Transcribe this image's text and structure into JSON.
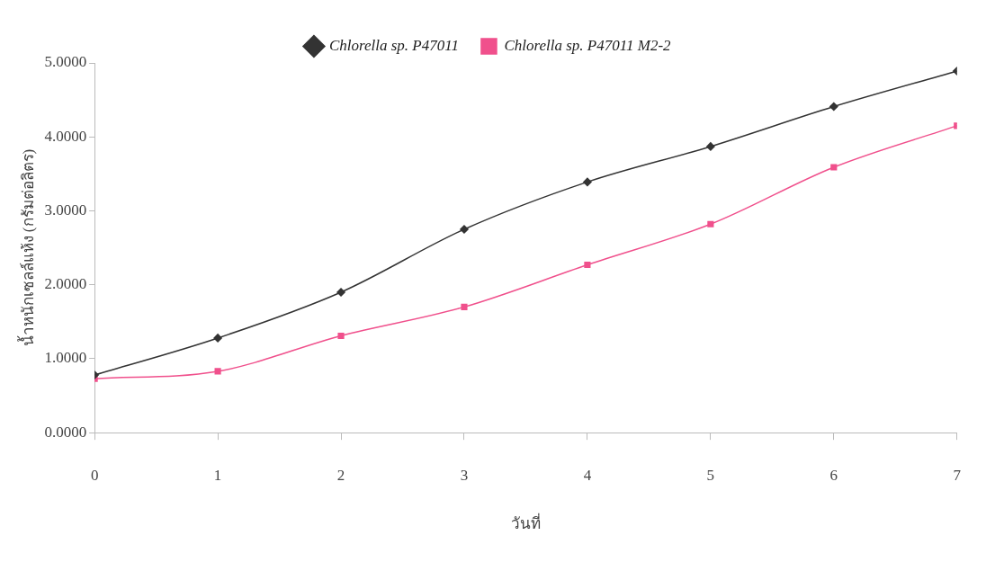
{
  "chart_data": {
    "type": "line",
    "xlabel": "วันที่",
    "ylabel": "น้ำหนักเซลล์แห้ง (กรัมต่อลิตร)",
    "x": [
      0,
      1,
      2,
      3,
      4,
      5,
      6,
      7
    ],
    "xlim": [
      0,
      7
    ],
    "xticks": [
      0,
      1,
      2,
      3,
      4,
      5,
      6,
      7
    ],
    "ylim": [
      0,
      5
    ],
    "yticks": [
      {
        "value": 0,
        "label": "0.0000"
      },
      {
        "value": 1,
        "label": "1.0000"
      },
      {
        "value": 2,
        "label": "2.0000"
      },
      {
        "value": 3,
        "label": "3.0000"
      },
      {
        "value": 4,
        "label": "4.0000"
      },
      {
        "value": 5,
        "label": "5.0000"
      }
    ],
    "grid": false,
    "legend": "top",
    "series": [
      {
        "name": "Chlorella sp. P47011",
        "color": "#333333",
        "marker": "diamond",
        "values": [
          0.78,
          1.28,
          1.9,
          2.75,
          3.39,
          3.87,
          4.41,
          4.89
        ]
      },
      {
        "name": "Chlorella sp. P47011 M2-2",
        "color": "#f0508c",
        "marker": "square",
        "values": [
          0.73,
          0.83,
          1.31,
          1.7,
          2.27,
          2.82,
          3.59,
          4.15
        ]
      }
    ]
  }
}
